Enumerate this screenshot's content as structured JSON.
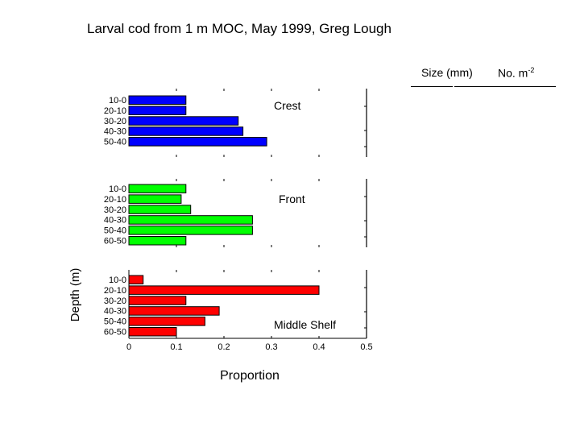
{
  "chart_data": {
    "type": "bar",
    "orientation": "horizontal",
    "title": "Larval cod from 1 m MOC, May 1999, Greg Lough",
    "xlabel": "Proportion",
    "ylabel": "Depth (m)",
    "xlim": [
      0,
      0.5
    ],
    "xticks": [
      "0",
      "0.1",
      "0.2",
      "0.3",
      "0.4",
      "0.5"
    ],
    "legend_headers": {
      "size": "Size (mm)",
      "no": "No. m",
      "no_sup": "-2"
    },
    "panels": [
      {
        "name": "Crest",
        "color": "#0000ff",
        "categories": [
          "10-0",
          "20-10",
          "30-20",
          "40-30",
          "50-40"
        ],
        "values": [
          0.12,
          0.12,
          0.23,
          0.24,
          0.29
        ]
      },
      {
        "name": "Front",
        "color": "#00ff00",
        "categories": [
          "10-0",
          "20-10",
          "30-20",
          "40-30",
          "50-40",
          "60-50"
        ],
        "values": [
          0.12,
          0.11,
          0.13,
          0.26,
          0.26,
          0.12
        ]
      },
      {
        "name": "Middle Shelf",
        "color": "#ff0000",
        "categories": [
          "10-0",
          "20-10",
          "30-20",
          "40-30",
          "50-40",
          "60-50"
        ],
        "values": [
          0.03,
          0.4,
          0.12,
          0.19,
          0.16,
          0.1
        ]
      }
    ]
  }
}
